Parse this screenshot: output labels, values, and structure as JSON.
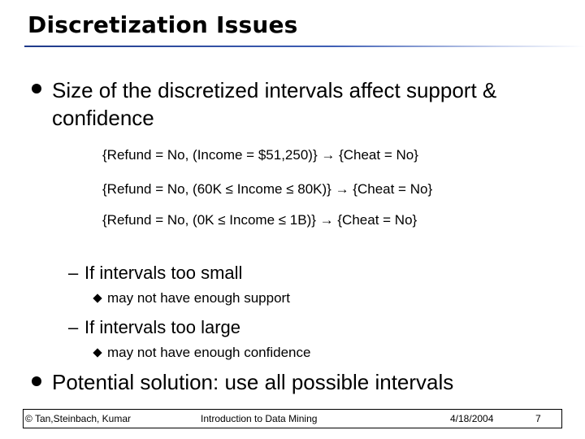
{
  "slide": {
    "title": "Discretization Issues",
    "bullet1": {
      "line1": "Size of the discretized intervals affect support &",
      "line2": "confidence"
    },
    "formulas": [
      "{Refund = No, (Income = $51,250)} → {Cheat = No}",
      "{Refund = No, (60K ≤ Income ≤ 80K)} → {Cheat = No}",
      "{Refund = No, (0K ≤ Income ≤ 1B)} → {Cheat = No}"
    ],
    "sub1": {
      "dash": "–",
      "text": "If intervals too small",
      "detail": "may not have enough support"
    },
    "sub2": {
      "dash": "–",
      "text": "If intervals too large",
      "detail": "may not have enough confidence"
    },
    "bullet2": "Potential solution: use all possible intervals"
  },
  "footer": {
    "copyright": "© Tan,Steinbach, Kumar",
    "course": "Introduction to Data Mining",
    "date": "4/18/2004",
    "page": "7"
  }
}
